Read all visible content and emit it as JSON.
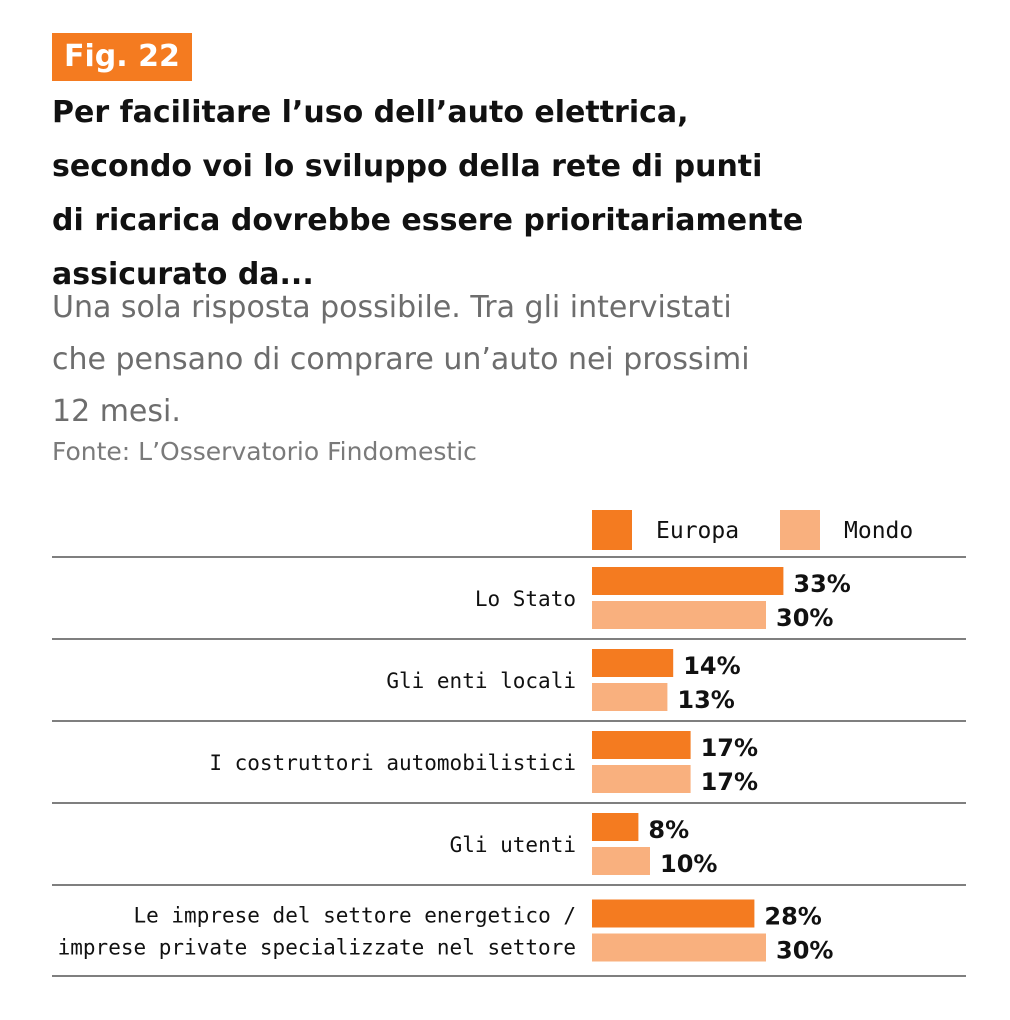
{
  "figure": {
    "badge": "Fig. 22",
    "title": "Per facilitare l’uso dell’auto elettrica, secondo voi lo sviluppo della rete di punti di ricarica dovrebbe essere prioritariamente assicurato da...",
    "title_lines": [
      "Per facilitare l’uso dell’auto elettrica,",
      "secondo voi lo sviluppo della rete di punti",
      "di ricarica dovrebbe essere prioritariamente",
      "assicurato da..."
    ],
    "subtitle_lines": [
      "Una sola risposta possibile. Tra gli intervistati",
      "che pensano di comprare un’auto nei prossimi",
      "12 mesi."
    ],
    "source": "Fonte: L’Osservatorio Findomestic"
  },
  "colors": {
    "accent": "#f47b20",
    "europa": "#f47b20",
    "mondo": "#f9b07e",
    "divider": "#555555",
    "text": "#111111",
    "subtitle_text": "#6d6d6d"
  },
  "chart_data": {
    "type": "bar",
    "orientation": "horizontal",
    "categories": [
      [
        "Lo Stato"
      ],
      [
        "Gli enti locali"
      ],
      [
        "I costruttori automobilistici"
      ],
      [
        "Gli utenti"
      ],
      [
        "Le imprese del settore energetico /",
        "imprese private specializzate nel settore"
      ]
    ],
    "series": [
      {
        "name": "Europa",
        "values": [
          33,
          14,
          17,
          8,
          28
        ]
      },
      {
        "name": "Mondo",
        "values": [
          30,
          13,
          17,
          10,
          30
        ]
      }
    ],
    "value_suffix": "%",
    "legend_position": "top-right",
    "grid": false
  }
}
